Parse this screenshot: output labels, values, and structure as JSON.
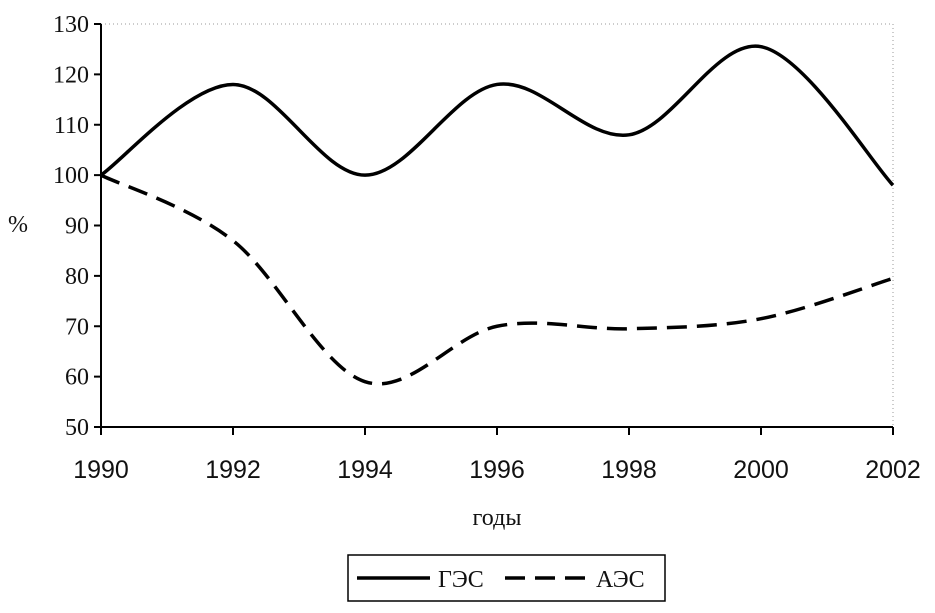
{
  "chart_data": {
    "type": "line",
    "xlabel": "годы",
    "ylabel": "%",
    "xlim": [
      1990,
      2002
    ],
    "ylim": [
      50,
      130
    ],
    "x_ticks": [
      "1990",
      "1992",
      "1994",
      "1996",
      "1998",
      "2000",
      "2002"
    ],
    "y_ticks": [
      "50",
      "60",
      "70",
      "80",
      "90",
      "100",
      "110",
      "120",
      "130"
    ],
    "grid": false,
    "legend_position": "bottom",
    "series": [
      {
        "name": "ГЭС",
        "style": "solid",
        "color": "#000000",
        "x": [
          1990,
          1992,
          1994,
          1996,
          1998,
          2000,
          2002
        ],
        "values": [
          100,
          118,
          100,
          118,
          108,
          125.5,
          98
        ]
      },
      {
        "name": "АЭС",
        "style": "dashed",
        "color": "#000000",
        "x": [
          1990,
          1992,
          1994,
          1996,
          1998,
          2000,
          2002
        ],
        "values": [
          100,
          87,
          59,
          70,
          69.5,
          71.5,
          79.5
        ]
      }
    ]
  }
}
